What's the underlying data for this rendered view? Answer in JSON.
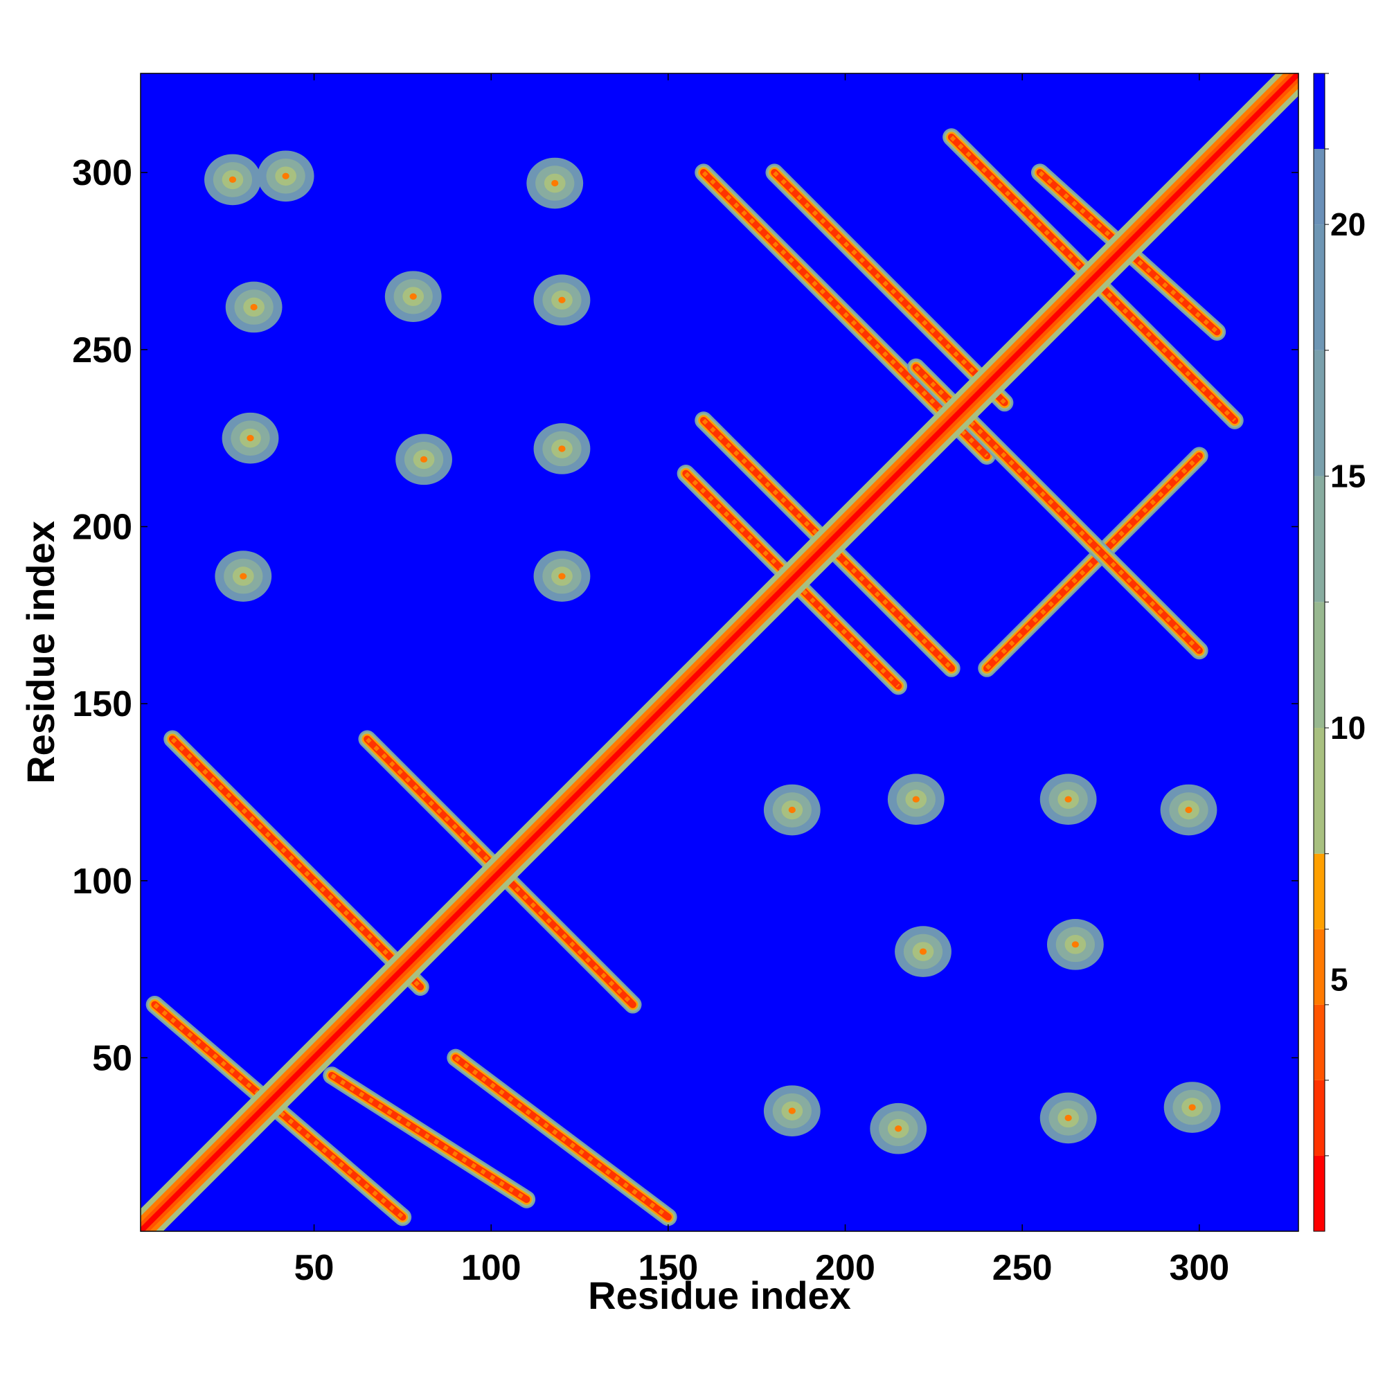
{
  "chart_data": {
    "type": "heatmap",
    "title": "",
    "xlabel": "Residue index",
    "ylabel": "Residue index",
    "xlim": [
      1,
      328
    ],
    "ylim": [
      1,
      328
    ],
    "x_ticks": [
      50,
      100,
      150,
      200,
      250,
      300
    ],
    "y_ticks": [
      50,
      100,
      150,
      200,
      250,
      300
    ],
    "colorbar": {
      "ticks": [
        5,
        10,
        15,
        20
      ],
      "range": [
        0,
        23
      ],
      "levels": [
        {
          "max": 1.5,
          "color": "#ff0000"
        },
        {
          "max": 3.0,
          "color": "#ff3300"
        },
        {
          "max": 4.5,
          "color": "#ff5500"
        },
        {
          "max": 6.0,
          "color": "#ff7a00"
        },
        {
          "max": 7.5,
          "color": "#ffa000"
        },
        {
          "max": 10.0,
          "color": "#a8c080"
        },
        {
          "max": 12.5,
          "color": "#98b890"
        },
        {
          "max": 15.0,
          "color": "#88aca0"
        },
        {
          "max": 17.5,
          "color": "#7aa0ac"
        },
        {
          "max": 20.0,
          "color": "#6e96b4"
        },
        {
          "max": 21.5,
          "color": "#6a90b8"
        },
        {
          "max": 23.0,
          "color": "#0000ff"
        }
      ]
    },
    "background_color": "#0000ff",
    "diagonal": {
      "from": 1,
      "to": 328
    },
    "contact_bands": [
      {
        "x": [
          5,
          75
        ],
        "y": [
          65,
          5
        ]
      },
      {
        "x": [
          10,
          80
        ],
        "y": [
          140,
          70
        ]
      },
      {
        "x": [
          65,
          140
        ],
        "y": [
          140,
          65
        ]
      },
      {
        "x": [
          55,
          110
        ],
        "y": [
          45,
          10
        ]
      },
      {
        "x": [
          90,
          150
        ],
        "y": [
          50,
          5
        ]
      },
      {
        "x": [
          160,
          230
        ],
        "y": [
          230,
          160
        ]
      },
      {
        "x": [
          155,
          215
        ],
        "y": [
          215,
          155
        ]
      },
      {
        "x": [
          180,
          245
        ],
        "y": [
          300,
          235
        ]
      },
      {
        "x": [
          240,
          300
        ],
        "y": [
          160,
          220
        ]
      },
      {
        "x": [
          230,
          310
        ],
        "y": [
          310,
          230
        ]
      },
      {
        "x": [
          160,
          240
        ],
        "y": [
          300,
          220
        ]
      },
      {
        "x": [
          220,
          300
        ],
        "y": [
          245,
          165
        ]
      },
      {
        "x": [
          255,
          305
        ],
        "y": [
          300,
          255
        ]
      }
    ],
    "contact_blobs": [
      {
        "x": 27,
        "y": 298
      },
      {
        "x": 42,
        "y": 299
      },
      {
        "x": 118,
        "y": 297
      },
      {
        "x": 33,
        "y": 262
      },
      {
        "x": 78,
        "y": 265
      },
      {
        "x": 120,
        "y": 264
      },
      {
        "x": 32,
        "y": 225
      },
      {
        "x": 81,
        "y": 219
      },
      {
        "x": 120,
        "y": 222
      },
      {
        "x": 30,
        "y": 186
      },
      {
        "x": 120,
        "y": 186
      },
      {
        "x": 185,
        "y": 120
      },
      {
        "x": 220,
        "y": 123
      },
      {
        "x": 263,
        "y": 123
      },
      {
        "x": 297,
        "y": 120
      },
      {
        "x": 222,
        "y": 80
      },
      {
        "x": 265,
        "y": 82
      },
      {
        "x": 185,
        "y": 35
      },
      {
        "x": 215,
        "y": 30
      },
      {
        "x": 263,
        "y": 33
      },
      {
        "x": 298,
        "y": 36
      }
    ]
  }
}
